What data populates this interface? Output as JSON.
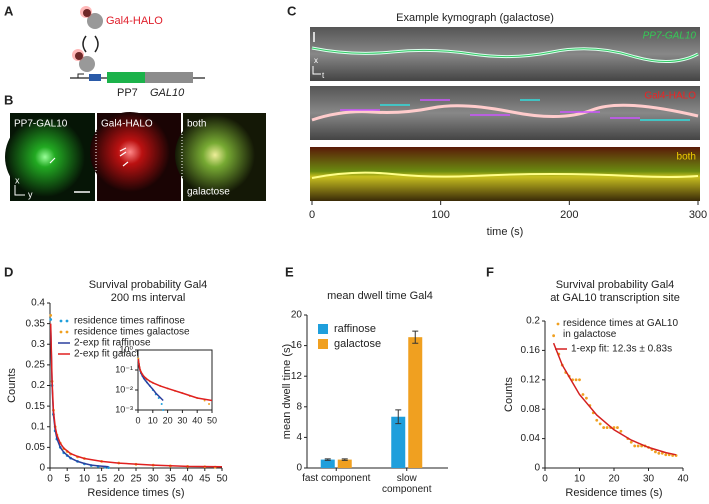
{
  "panel_labels": [
    "A",
    "B",
    "C",
    "D",
    "E",
    "F"
  ],
  "panel_a": {
    "protein": "Gal4-HALO",
    "elements": [
      "PP7",
      "GAL10"
    ]
  },
  "panel_b": {
    "channels": [
      "PP7-GAL10",
      "Gal4-HALO",
      "both"
    ],
    "condition": "galactose",
    "axes": [
      "x",
      "y"
    ]
  },
  "chart_data": [
    {
      "type": "kymograph",
      "title": "Example kymograph (galactose)",
      "channels": [
        "PP7-GAL10",
        "Gal4-HALO",
        "both"
      ],
      "image_axes": [
        "x",
        "t"
      ],
      "xlabel": "time (s)",
      "xlim": [
        0,
        300
      ],
      "xticks": [
        0,
        100,
        200,
        300
      ]
    },
    {
      "type": "scatter",
      "title": "Survival probability Gal4",
      "subtitle": "200 ms interval",
      "xlabel": "Residence times (s)",
      "ylabel": "Counts",
      "xlim": [
        0,
        50
      ],
      "xticks": [
        0,
        5,
        10,
        15,
        20,
        25,
        30,
        35,
        40,
        45,
        50
      ],
      "ylim": [
        0,
        0.4
      ],
      "yticks": [
        0,
        0.05,
        0.1,
        0.15,
        0.2,
        0.25,
        0.3,
        0.35,
        0.4
      ],
      "series": [
        {
          "name": "residence times raffinose",
          "color": "#1f9fdc",
          "style": "points",
          "x": [
            0.2,
            0.6,
            1,
            1.5,
            2,
            3,
            4,
            5,
            6,
            8,
            10,
            12,
            14,
            16,
            17
          ],
          "values": [
            0.36,
            0.2,
            0.13,
            0.09,
            0.07,
            0.05,
            0.037,
            0.03,
            0.024,
            0.016,
            0.01,
            0.006,
            0.004,
            0.002,
            0.001
          ]
        },
        {
          "name": "residence times galactose",
          "color": "#f0a020",
          "style": "points",
          "x": [
            0.2,
            0.6,
            1,
            1.5,
            2,
            3,
            4,
            5,
            6,
            8,
            10,
            15,
            20,
            25,
            30,
            35,
            40,
            45,
            48
          ],
          "values": [
            0.37,
            0.21,
            0.14,
            0.1,
            0.08,
            0.06,
            0.047,
            0.04,
            0.034,
            0.027,
            0.023,
            0.016,
            0.012,
            0.009,
            0.007,
            0.005,
            0.004,
            0.003,
            0.002
          ]
        },
        {
          "name": "2-exp fit raffinose",
          "color": "#2a3f9e",
          "style": "line",
          "x": [
            0.2,
            0.6,
            1,
            1.5,
            2,
            3,
            4,
            6,
            8,
            10,
            12,
            14,
            17
          ],
          "values": [
            0.34,
            0.2,
            0.13,
            0.092,
            0.071,
            0.05,
            0.038,
            0.024,
            0.016,
            0.011,
            0.007,
            0.005,
            0.003
          ]
        },
        {
          "name": "2-exp fit galactose",
          "color": "#e02020",
          "style": "line",
          "x": [
            0.2,
            0.6,
            1,
            1.5,
            2,
            3,
            4,
            6,
            8,
            10,
            15,
            20,
            30,
            40,
            50
          ],
          "values": [
            0.35,
            0.21,
            0.14,
            0.1,
            0.08,
            0.06,
            0.048,
            0.035,
            0.028,
            0.023,
            0.016,
            0.012,
            0.007,
            0.004,
            0.003
          ]
        }
      ],
      "legend": "upper right",
      "inset": {
        "y_scale": "log",
        "xlim": [
          0,
          50
        ],
        "xticks": [
          0,
          10,
          20,
          30,
          40,
          50
        ],
        "ylim": [
          0.001,
          1
        ],
        "yticks": [
          {
            "value": 1,
            "label": "10⁰"
          },
          {
            "value": 0.1,
            "label": "10⁻¹"
          },
          {
            "value": 0.01,
            "label": "10⁻²"
          },
          {
            "value": 0.001,
            "label": "10⁻³"
          }
        ]
      }
    },
    {
      "type": "bar",
      "title": "mean dwell time Gal4",
      "ylabel": "mean dwell time (s)",
      "categories": [
        "fast component",
        "slow component"
      ],
      "ylim": [
        0,
        20
      ],
      "yticks": [
        0,
        4,
        8,
        12,
        16,
        20
      ],
      "series": [
        {
          "name": "raffinose",
          "color": "#1f9fdc",
          "values": [
            1.1,
            6.7
          ],
          "errors": [
            0.1,
            0.9
          ]
        },
        {
          "name": "galactose",
          "color": "#f0a020",
          "values": [
            1.1,
            17.1
          ],
          "errors": [
            0.1,
            0.8
          ]
        }
      ],
      "legend": "upper left"
    },
    {
      "type": "scatter",
      "title": "Survival probability Gal4",
      "subtitle": "at GAL10 transcription site",
      "xlabel": "Residence times (s)",
      "ylabel": "Counts",
      "xlim": [
        0,
        40
      ],
      "xticks": [
        0,
        10,
        20,
        30,
        40
      ],
      "ylim": [
        0,
        0.2
      ],
      "yticks": [
        0,
        0.04,
        0.08,
        0.12,
        0.16,
        0.2
      ],
      "series": [
        {
          "name": "residence times at GAL10 in galactose",
          "color": "#f0a020",
          "style": "points",
          "x": [
            2.5,
            4,
            5,
            6,
            7,
            8,
            9,
            10,
            11,
            12,
            13,
            14,
            15,
            16,
            17,
            18,
            19,
            20,
            21,
            22,
            24,
            25,
            26,
            27,
            28,
            29,
            30,
            31,
            32,
            33,
            34,
            35,
            36,
            37,
            38
          ],
          "values": [
            0.18,
            0.155,
            0.14,
            0.13,
            0.125,
            0.12,
            0.12,
            0.12,
            0.1,
            0.095,
            0.085,
            0.075,
            0.065,
            0.06,
            0.055,
            0.055,
            0.055,
            0.055,
            0.055,
            0.05,
            0.04,
            0.035,
            0.03,
            0.03,
            0.03,
            0.03,
            0.028,
            0.025,
            0.022,
            0.02,
            0.02,
            0.018,
            0.018,
            0.017,
            0.017
          ]
        },
        {
          "name": "1-exp fit: 12.3s ± 0.83s",
          "color": "#d42020",
          "style": "line",
          "x": [
            2.5,
            5,
            10,
            15,
            20,
            25,
            30,
            35,
            38
          ],
          "values": [
            0.17,
            0.14,
            0.1,
            0.072,
            0.052,
            0.038,
            0.028,
            0.021,
            0.018
          ]
        }
      ],
      "legend": "upper right"
    }
  ]
}
